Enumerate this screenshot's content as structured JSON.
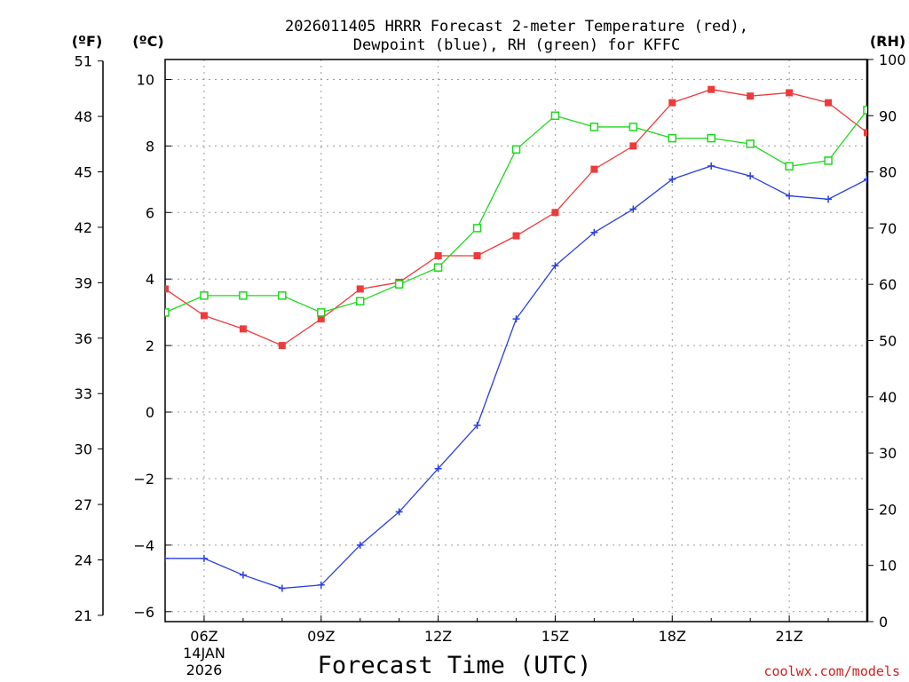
{
  "title_line1": "2026011405 HRRR Forecast 2-meter Temperature (red),",
  "title_line2": "Dewpoint (blue), RH (green) for KFFC",
  "xlabel": "Forecast Time (UTC)",
  "credit": "coolwx.com/models",
  "colors": {
    "temperature": "#ee3a3a",
    "dewpoint": "#2a3fe0",
    "rh": "#1ed81e"
  },
  "chart_data": {
    "type": "line",
    "title": "2026011405 HRRR Forecast 2-meter Temperature (red), Dewpoint (blue), RH (green) for KFFC",
    "xlabel": "Forecast Time (UTC)",
    "x": [
      5,
      6,
      7,
      8,
      9,
      10,
      11,
      12,
      13,
      14,
      15,
      16,
      17,
      18,
      19,
      20,
      21,
      22,
      23
    ],
    "xlim": [
      5,
      23
    ],
    "x_ticks": [
      {
        "x": 6,
        "label": "06Z",
        "sub1": "14JAN",
        "sub2": "2026"
      },
      {
        "x": 9,
        "label": "09Z",
        "sub1": "",
        "sub2": ""
      },
      {
        "x": 12,
        "label": "12Z",
        "sub1": "",
        "sub2": ""
      },
      {
        "x": 15,
        "label": "15Z",
        "sub1": "",
        "sub2": ""
      },
      {
        "x": 18,
        "label": "18Z",
        "sub1": "",
        "sub2": ""
      },
      {
        "x": 21,
        "label": "21Z",
        "sub1": "",
        "sub2": ""
      }
    ],
    "y_left_c": {
      "unit": "(ºC)",
      "lim": [
        -6.3,
        10.6
      ],
      "ticks": [
        -6,
        -4,
        -2,
        0,
        2,
        4,
        6,
        8,
        10
      ]
    },
    "y_left_f": {
      "unit": "(ºF)",
      "ticks": [
        21,
        24,
        27,
        30,
        33,
        36,
        39,
        42,
        45,
        48,
        51
      ]
    },
    "y_right_rh": {
      "unit": "(RH)",
      "lim": [
        0,
        100
      ],
      "ticks": [
        0,
        10,
        20,
        30,
        40,
        50,
        60,
        70,
        80,
        90,
        100
      ]
    },
    "series": [
      {
        "name": "Temperature",
        "unit": "C",
        "axis": "left",
        "marker": "filled-square",
        "values": [
          3.7,
          2.9,
          2.5,
          2.0,
          2.8,
          3.7,
          3.9,
          4.7,
          4.7,
          5.3,
          6.0,
          7.3,
          8.0,
          9.3,
          9.7,
          9.5,
          9.6,
          9.3,
          8.4
        ]
      },
      {
        "name": "Dewpoint",
        "unit": "C",
        "axis": "left",
        "marker": "plus",
        "values": [
          -4.4,
          -4.4,
          -4.9,
          -5.3,
          -5.2,
          -4.0,
          -3.0,
          -1.7,
          -0.4,
          2.8,
          4.4,
          5.4,
          6.1,
          7.0,
          7.4,
          7.1,
          6.5,
          6.4,
          7.0
        ]
      },
      {
        "name": "RH",
        "unit": "%",
        "axis": "right",
        "marker": "open-square",
        "values": [
          55,
          58,
          58,
          58,
          55,
          57,
          60,
          63,
          70,
          84,
          90,
          88,
          88,
          86,
          86,
          85,
          81,
          82,
          91
        ]
      }
    ]
  }
}
